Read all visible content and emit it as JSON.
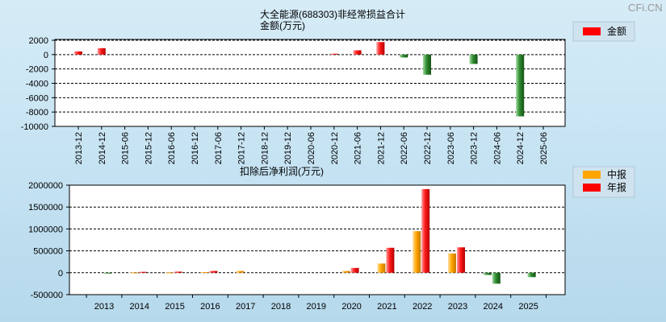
{
  "watermark": "CFi.CN",
  "chart_data": [
    {
      "type": "bar",
      "title": "大全能源(688303)非经常损益合计",
      "subtitle": "金额(万元)",
      "categories": [
        "2013-12",
        "2014-12",
        "2015-06",
        "2015-12",
        "2016-06",
        "2016-12",
        "2017-06",
        "2017-12",
        "2018-12",
        "2019-12",
        "2020-06",
        "2020-12",
        "2021-06",
        "2021-12",
        "2022-06",
        "2022-12",
        "2023-06",
        "2023-12",
        "2024-06",
        "2024-12",
        "2025-06"
      ],
      "series": [
        {
          "name": "金额",
          "color": "#ff0000",
          "negative_color": "#2e8b2e",
          "values": [
            450,
            900,
            0,
            0,
            0,
            0,
            0,
            0,
            0,
            0,
            0,
            120,
            600,
            1750,
            -400,
            -2800,
            0,
            -1300,
            0,
            -8600,
            0
          ]
        }
      ],
      "yticks": [
        2000,
        0,
        -2000,
        -4000,
        -6000,
        -8000,
        -10000
      ],
      "ylim": [
        -10000,
        2000
      ],
      "grid": true,
      "legend": "top-right"
    },
    {
      "type": "bar",
      "title": "扣除后净利润(万元)",
      "categories": [
        "2013",
        "2014",
        "2015",
        "2016",
        "2017",
        "2018",
        "2019",
        "2020",
        "2021",
        "2022",
        "2023",
        "2024",
        "2025"
      ],
      "series": [
        {
          "name": "中报",
          "color": "#ffa500",
          "negative_color": "#2e8b2e",
          "values": [
            0,
            5000,
            8000,
            15000,
            40000,
            0,
            0,
            40000,
            210000,
            950000,
            440000,
            -50000,
            0
          ]
        },
        {
          "name": "年报",
          "color": "#ff0000",
          "negative_color": "#2e8b2e",
          "values": [
            -10000,
            20000,
            25000,
            40000,
            0,
            0,
            0,
            110000,
            570000,
            1910000,
            580000,
            -250000,
            -100000
          ]
        }
      ],
      "yticks": [
        2000000,
        1500000,
        1000000,
        500000,
        0,
        -500000
      ],
      "ylim": [
        -500000,
        2000000
      ],
      "grid": true,
      "legend": "top-right"
    }
  ]
}
